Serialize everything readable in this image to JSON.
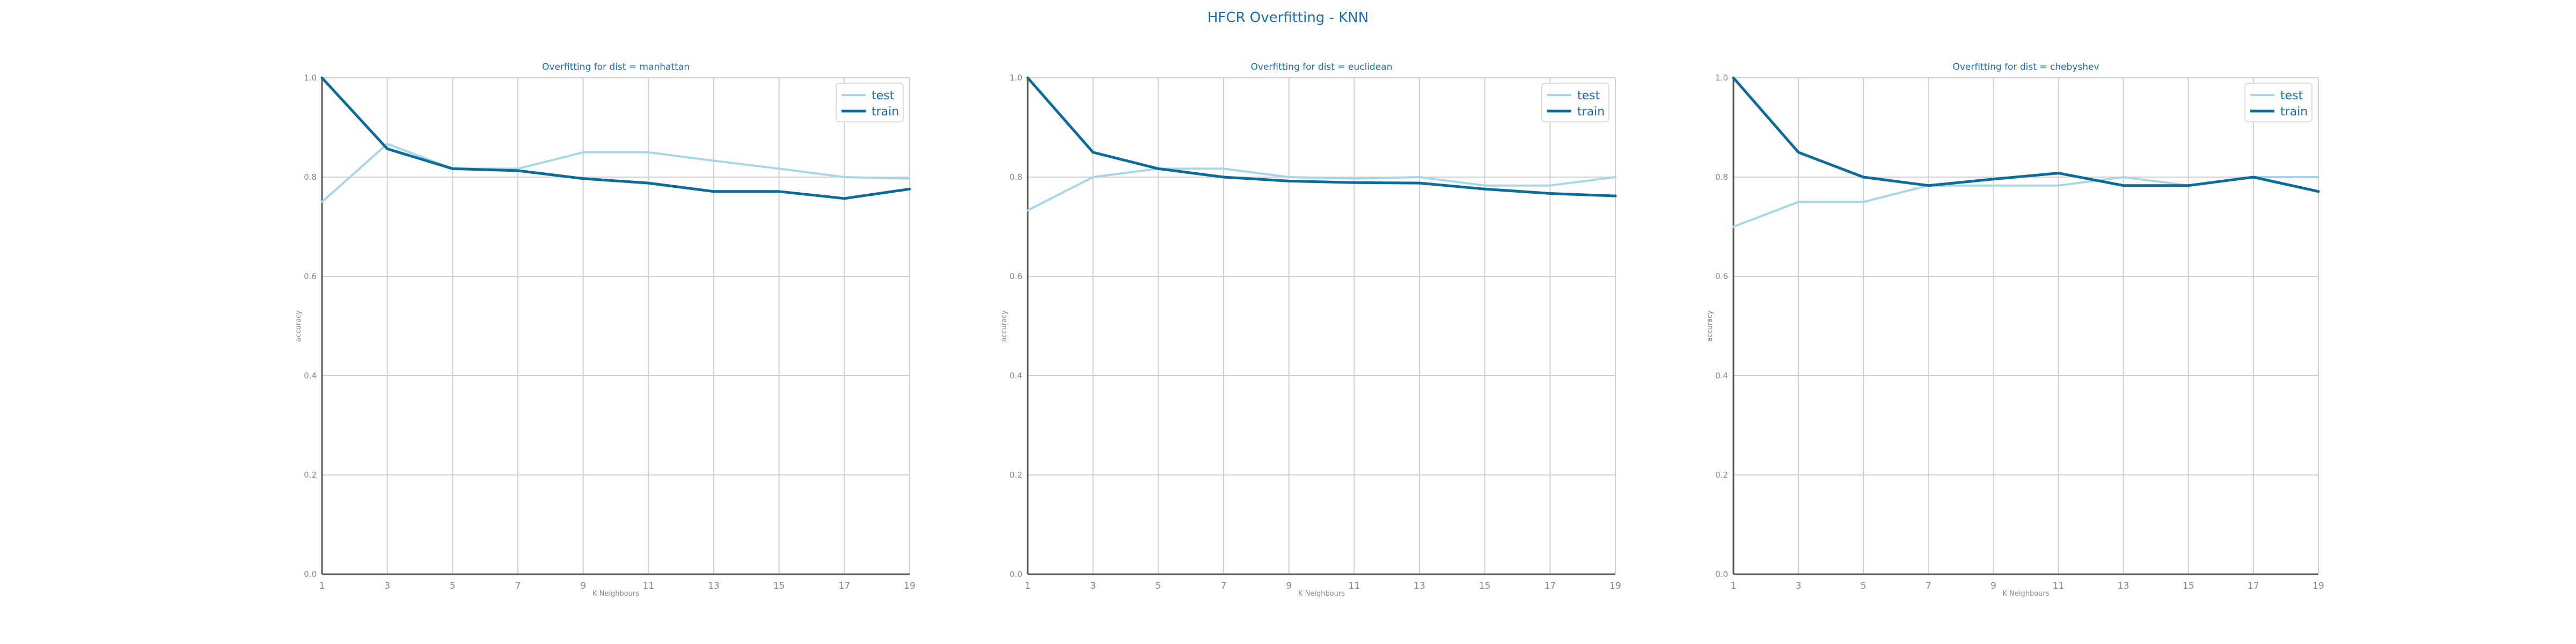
{
  "figure": {
    "suptitle": "HFCR Overfitting - KNN"
  },
  "colors": {
    "test": "#a9d6e5",
    "train": "#0c6b9a",
    "axis": "#555555",
    "grid": "#d0d0d0",
    "text": "#1a6fa6",
    "tick": "#888888"
  },
  "chart_data": [
    {
      "type": "line",
      "title": "Overfitting for dist = manhattan",
      "xlabel": "K Neighbours",
      "ylabel": "accuracy",
      "x": [
        1,
        3,
        5,
        7,
        9,
        11,
        13,
        15,
        17,
        19
      ],
      "ylim": [
        0,
        1
      ],
      "yticks": [
        "0.0",
        "0.2",
        "0.4",
        "0.6",
        "0.8",
        "1.0"
      ],
      "legend": "top-right",
      "grid": true,
      "series": [
        {
          "name": "test",
          "values": [
            0.75,
            0.867,
            0.817,
            0.817,
            0.85,
            0.85,
            0.833,
            0.817,
            0.8,
            0.797
          ]
        },
        {
          "name": "train",
          "values": [
            1.0,
            0.857,
            0.817,
            0.813,
            0.797,
            0.788,
            0.771,
            0.771,
            0.757,
            0.776
          ]
        }
      ]
    },
    {
      "type": "line",
      "title": "Overfitting for dist = euclidean",
      "xlabel": "K Neighbours",
      "ylabel": "accuracy",
      "x": [
        1,
        3,
        5,
        7,
        9,
        11,
        13,
        15,
        17,
        19
      ],
      "ylim": [
        0,
        1
      ],
      "yticks": [
        "0.0",
        "0.2",
        "0.4",
        "0.6",
        "0.8",
        "1.0"
      ],
      "legend": "top-right",
      "grid": true,
      "series": [
        {
          "name": "test",
          "values": [
            0.733,
            0.8,
            0.817,
            0.817,
            0.8,
            0.797,
            0.8,
            0.783,
            0.783,
            0.8
          ]
        },
        {
          "name": "train",
          "values": [
            1.0,
            0.85,
            0.817,
            0.8,
            0.792,
            0.789,
            0.788,
            0.776,
            0.767,
            0.762
          ]
        }
      ]
    },
    {
      "type": "line",
      "title": "Overfitting for dist = chebyshev",
      "xlabel": "K Neighbours",
      "ylabel": "accuracy",
      "x": [
        1,
        3,
        5,
        7,
        9,
        11,
        13,
        15,
        17,
        19
      ],
      "ylim": [
        0,
        1
      ],
      "yticks": [
        "0.0",
        "0.2",
        "0.4",
        "0.6",
        "0.8",
        "1.0"
      ],
      "legend": "top-right",
      "grid": true,
      "series": [
        {
          "name": "test",
          "values": [
            0.7,
            0.75,
            0.75,
            0.783,
            0.783,
            0.783,
            0.8,
            0.783,
            0.8,
            0.8
          ]
        },
        {
          "name": "train",
          "values": [
            1.0,
            0.85,
            0.8,
            0.783,
            0.796,
            0.808,
            0.783,
            0.783,
            0.8,
            0.771
          ]
        }
      ]
    }
  ]
}
